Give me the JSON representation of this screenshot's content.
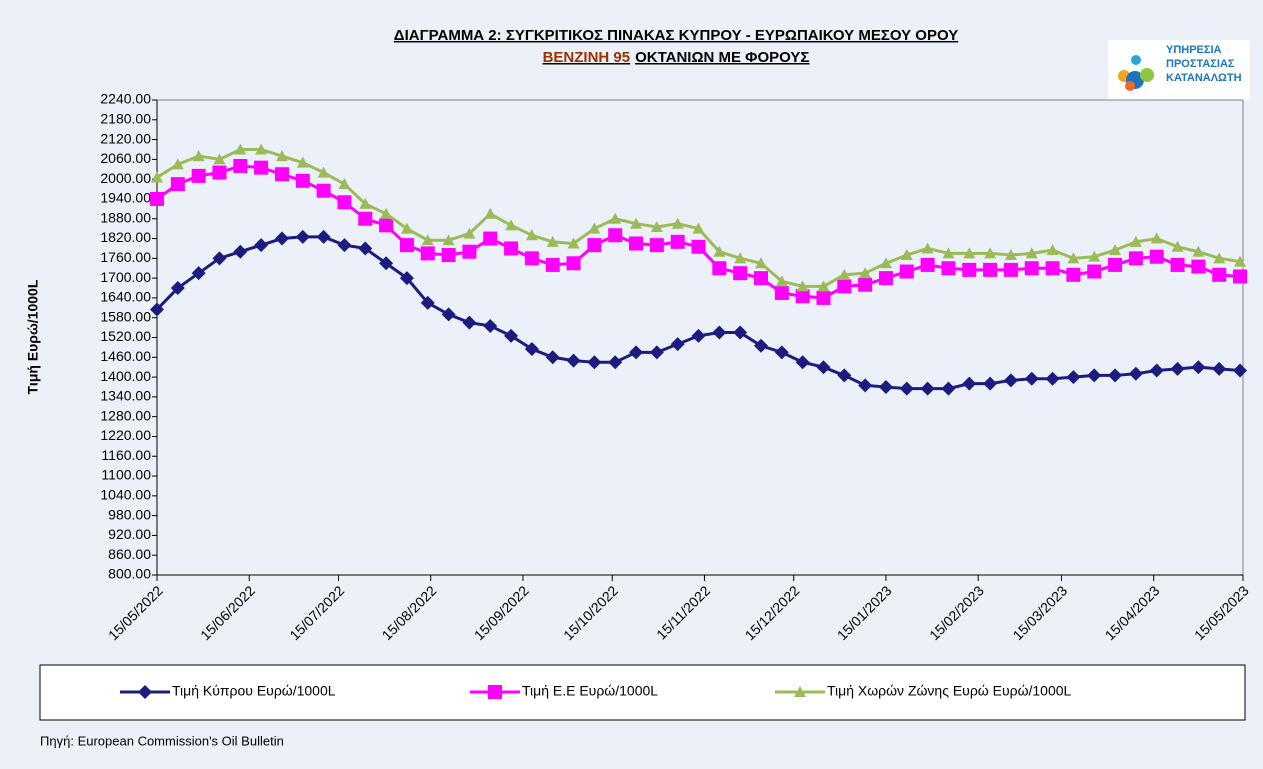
{
  "logo": {
    "lines": [
      "ΥΠΗΡΕΣΙΑ",
      "ΠΡΟΣΤΑΣΙΑΣ",
      "ΚΑΤΑΝΑΛΩΤΗ"
    ]
  },
  "chart_data": {
    "type": "line",
    "title": "ΔΙΑΓΡΑΜΜΑ 2: ΣΥΓΚΡΙΤΙΚΟΣ ΠΙΝΑΚΑΣ ΚΥΠΡΟΥ - ΕΥΡΩΠΑΙΚΟΥ ΜΕΣΟΥ ΟΡΟΥ",
    "subtitle_parts": [
      "ΒΕΝΖΙΝΗ 95",
      "ΟΚΤΑΝΙΩΝ ΜΕ ΦΟΡΟΥΣ"
    ],
    "ylabel": "Τιμή Ευρώ/1000L",
    "source": "Πηγή: European Commission's Oil Bulletin",
    "x": [
      "15/05/2022",
      "22/05/2022",
      "29/05/2022",
      "05/06/2022",
      "12/06/2022",
      "19/06/2022",
      "26/06/2022",
      "03/07/2022",
      "10/07/2022",
      "17/07/2022",
      "24/07/2022",
      "31/07/2022",
      "07/08/2022",
      "14/08/2022",
      "21/08/2022",
      "28/08/2022",
      "04/09/2022",
      "11/09/2022",
      "18/09/2022",
      "25/09/2022",
      "02/10/2022",
      "09/10/2022",
      "16/10/2022",
      "23/10/2022",
      "30/10/2022",
      "06/11/2022",
      "13/11/2022",
      "20/11/2022",
      "27/11/2022",
      "04/12/2022",
      "11/12/2022",
      "18/12/2022",
      "25/12/2022",
      "01/01/2023",
      "08/01/2023",
      "15/01/2023",
      "22/01/2023",
      "29/01/2023",
      "05/02/2023",
      "12/02/2023",
      "19/02/2023",
      "26/02/2023",
      "05/03/2023",
      "12/03/2023",
      "19/03/2023",
      "26/03/2023",
      "02/04/2023",
      "09/04/2023",
      "16/04/2023",
      "23/04/2023",
      "30/04/2023",
      "07/05/2023",
      "14/05/2023"
    ],
    "series": [
      {
        "name": "Τιμή Κύπρου Ευρώ/1000L",
        "color": "#1c1c80",
        "marker": "diamond",
        "values": [
          1605,
          1670,
          1715,
          1760,
          1780,
          1800,
          1820,
          1825,
          1825,
          1800,
          1790,
          1745,
          1700,
          1625,
          1590,
          1565,
          1555,
          1525,
          1485,
          1460,
          1450,
          1445,
          1445,
          1475,
          1475,
          1500,
          1525,
          1535,
          1535,
          1495,
          1475,
          1445,
          1430,
          1405,
          1375,
          1370,
          1365,
          1365,
          1365,
          1380,
          1380,
          1390,
          1395,
          1395,
          1400,
          1405,
          1405,
          1410,
          1420,
          1425,
          1430,
          1425,
          1420
        ]
      },
      {
        "name": "Τιμή Ε.Ε Ευρώ/1000L",
        "color": "#ff00ff",
        "marker": "square",
        "values": [
          1940,
          1985,
          2010,
          2020,
          2040,
          2035,
          2015,
          1995,
          1965,
          1930,
          1880,
          1860,
          1800,
          1775,
          1770,
          1780,
          1820,
          1790,
          1760,
          1740,
          1745,
          1800,
          1830,
          1805,
          1800,
          1810,
          1795,
          1730,
          1715,
          1700,
          1655,
          1645,
          1640,
          1675,
          1680,
          1700,
          1720,
          1740,
          1730,
          1725,
          1725,
          1725,
          1730,
          1730,
          1710,
          1720,
          1740,
          1760,
          1765,
          1740,
          1735,
          1710,
          1705
        ]
      },
      {
        "name": "Τιμή Χωρών Ζώνης Ευρώ Ευρώ/1000L",
        "color": "#9bbb59",
        "marker": "triangle",
        "values": [
          2005,
          2045,
          2070,
          2060,
          2090,
          2090,
          2070,
          2050,
          2020,
          1985,
          1925,
          1895,
          1850,
          1815,
          1815,
          1835,
          1895,
          1860,
          1830,
          1810,
          1805,
          1850,
          1880,
          1865,
          1855,
          1865,
          1850,
          1780,
          1760,
          1745,
          1690,
          1675,
          1675,
          1710,
          1715,
          1745,
          1770,
          1790,
          1775,
          1775,
          1775,
          1770,
          1775,
          1785,
          1760,
          1765,
          1785,
          1810,
          1820,
          1795,
          1780,
          1760,
          1750
        ]
      }
    ],
    "xlim": [
      "15/05/2022",
      "15/05/2023"
    ],
    "xticks": [
      "15/05/2022",
      "15/06/2022",
      "15/07/2022",
      "15/08/2022",
      "15/09/2022",
      "15/10/2022",
      "15/11/2022",
      "15/12/2022",
      "15/01/2023",
      "15/02/2023",
      "15/03/2023",
      "15/04/2023",
      "15/05/2023"
    ],
    "ylim": [
      800,
      2240
    ],
    "yticks": [
      {
        "value": 800,
        "label": "800.00"
      },
      {
        "value": 860,
        "label": "860.00"
      },
      {
        "value": 920,
        "label": "920.00"
      },
      {
        "value": 980,
        "label": "980.00"
      },
      {
        "value": 1040,
        "label": "1040.00"
      },
      {
        "value": 1100,
        "label": "1100.00"
      },
      {
        "value": 1160,
        "label": "1160.00"
      },
      {
        "value": 1220,
        "label": "1220.00"
      },
      {
        "value": 1280,
        "label": "1280.00"
      },
      {
        "value": 1340,
        "label": "1340.00"
      },
      {
        "value": 1400,
        "label": "1400.00"
      },
      {
        "value": 1460,
        "label": "1460.00"
      },
      {
        "value": 1520,
        "label": "1520.00"
      },
      {
        "value": 1580,
        "label": "1580.00"
      },
      {
        "value": 1640,
        "label": "1640.00"
      },
      {
        "value": 1700,
        "label": "1700.00"
      },
      {
        "value": 1760,
        "label": "1760.00"
      },
      {
        "value": 1820,
        "label": "1820.00"
      },
      {
        "value": 1880,
        "label": "1880.00"
      },
      {
        "value": 1940,
        "label": "1940.00"
      },
      {
        "value": 2000,
        "label": "2000.00"
      },
      {
        "value": 2060,
        "label": "2060.00"
      },
      {
        "value": 2120,
        "label": "2120.00"
      },
      {
        "value": 2180,
        "label": "2180.00"
      },
      {
        "value": 2240,
        "label": "2240.00"
      }
    ],
    "legend": "bottom"
  }
}
